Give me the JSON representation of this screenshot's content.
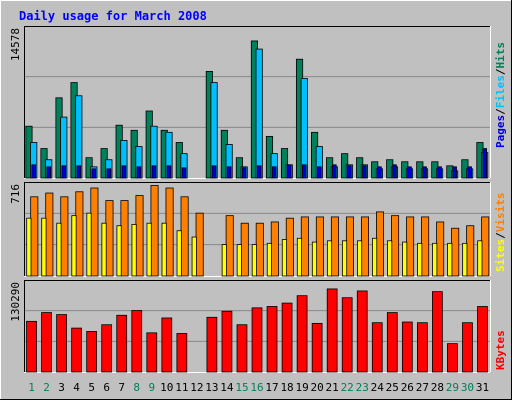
{
  "title": "Daily usage for March 2008",
  "colors": {
    "background": "#c0c0c0",
    "title": "#0000ff",
    "hits": "#00805b",
    "files": "#00bfff",
    "pages": "#0000d6",
    "visits": "#ff8000",
    "sites": "#ffff00",
    "kbytes": "#ff0000",
    "weekday_label": "#000000",
    "weekend_label": "#00805b"
  },
  "chart_data": [
    {
      "type": "bar",
      "panel": "hits-files-pages",
      "ymax_label": "14578",
      "ymax": 14578,
      "legend": [
        {
          "label": "Hits",
          "color": "#00805b"
        },
        {
          "label": "Files",
          "color": "#00bfff"
        },
        {
          "label": "Pages",
          "color": "#0000d6"
        }
      ],
      "separator": "/",
      "series": [
        {
          "name": "Hits",
          "values": [
            5100,
            2900,
            7900,
            9400,
            2000,
            2900,
            5200,
            4700,
            6600,
            4700,
            3500,
            0,
            10500,
            4700,
            2000,
            13500,
            4100,
            2900,
            11700,
            4500,
            2000,
            2400,
            2000,
            1600,
            1800,
            1600,
            1600,
            1600,
            1200,
            1800,
            3500
          ]
        },
        {
          "name": "Files",
          "values": [
            3500,
            1800,
            6000,
            8100,
            1100,
            1800,
            3700,
            3100,
            5100,
            4500,
            2400,
            0,
            9400,
            3300,
            1100,
            12700,
            2400,
            1300,
            9800,
            3100,
            1100,
            1300,
            1300,
            900,
            1100,
            900,
            900,
            900,
            700,
            900,
            2500
          ]
        },
        {
          "name": "Pages",
          "values": [
            1300,
            1100,
            1200,
            1200,
            900,
            900,
            1200,
            1100,
            1200,
            1200,
            1000,
            0,
            1200,
            1100,
            1000,
            1200,
            1100,
            1300,
            1300,
            1100,
            1300,
            1200,
            1200,
            1100,
            1300,
            1100,
            1100,
            1100,
            1100,
            1100,
            2900
          ]
        }
      ]
    },
    {
      "type": "bar",
      "panel": "visits-sites",
      "ymax_label": "716",
      "ymax": 716,
      "legend": [
        {
          "label": "Visits",
          "color": "#ff8000"
        },
        {
          "label": "Sites",
          "color": "#ffff00"
        }
      ],
      "separator": "/",
      "series": [
        {
          "name": "Visits",
          "values": [
            630,
            660,
            630,
            670,
            700,
            600,
            600,
            640,
            720,
            700,
            630,
            500,
            0,
            480,
            420,
            420,
            430,
            460,
            470,
            470,
            470,
            470,
            470,
            510,
            480,
            470,
            470,
            430,
            380,
            400,
            470
          ]
        },
        {
          "name": "Sites",
          "values": [
            460,
            460,
            420,
            480,
            500,
            420,
            400,
            410,
            420,
            420,
            360,
            310,
            0,
            250,
            250,
            250,
            260,
            290,
            300,
            270,
            280,
            280,
            280,
            300,
            280,
            270,
            260,
            260,
            260,
            260,
            280
          ]
        }
      ]
    },
    {
      "type": "bar",
      "panel": "kbytes",
      "ymax_label": "130290",
      "ymax": 130290,
      "legend": [
        {
          "label": "KBytes",
          "color": "#ff0000"
        }
      ],
      "series": [
        {
          "name": "KBytes",
          "values": [
            75000,
            88000,
            85000,
            65000,
            60000,
            70000,
            84000,
            91000,
            58000,
            80000,
            57000,
            0,
            81000,
            90000,
            70000,
            95000,
            97000,
            102000,
            113000,
            72000,
            123000,
            110000,
            120000,
            73000,
            88000,
            74000,
            73000,
            119000,
            42000,
            73000,
            97000
          ]
        }
      ]
    }
  ],
  "days": [
    "1",
    "2",
    "3",
    "4",
    "5",
    "6",
    "7",
    "8",
    "9",
    "10",
    "11",
    "12",
    "13",
    "14",
    "15",
    "16",
    "17",
    "18",
    "19",
    "20",
    "21",
    "22",
    "23",
    "24",
    "25",
    "26",
    "27",
    "28",
    "29",
    "30",
    "31"
  ],
  "weekend_days": [
    "1",
    "2",
    "8",
    "9",
    "15",
    "16",
    "22",
    "23",
    "29",
    "30"
  ]
}
